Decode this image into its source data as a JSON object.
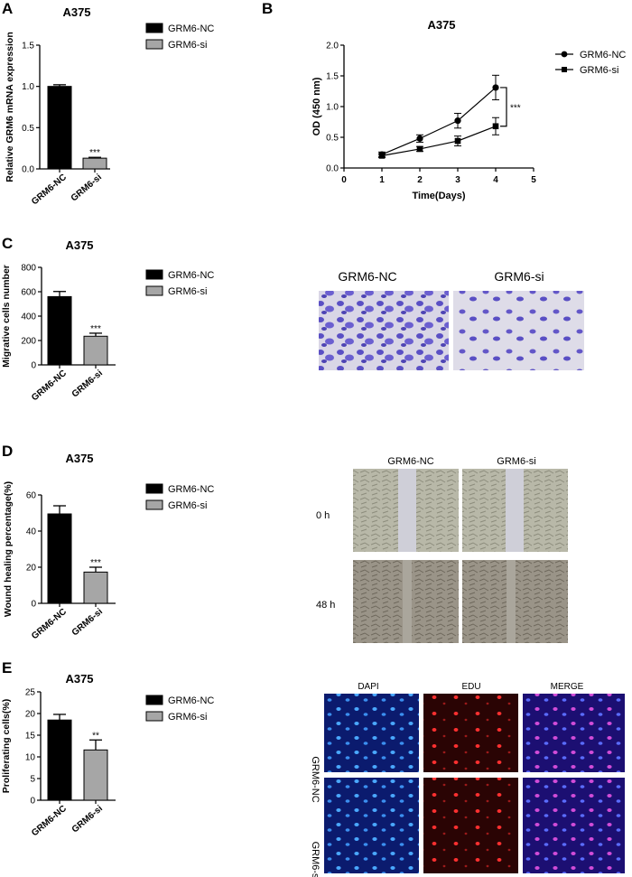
{
  "chart_data": [
    {
      "panel": "A",
      "type": "bar",
      "title": "A375",
      "ylabel": "Relative GRM6 mRNA expression",
      "categories": [
        "GRM6-NC",
        "GRM6-si"
      ],
      "values": [
        1.0,
        0.13
      ],
      "errors": [
        0.02,
        0.01
      ],
      "colors": [
        "#000000",
        "#a6a6a6"
      ],
      "ylim": [
        0,
        1.5
      ],
      "yticks": [
        "0.0",
        "0.5",
        "1.0",
        "1.5"
      ],
      "significance": [
        "",
        "***"
      ],
      "legend": [
        "GRM6-NC",
        "GRM6-si"
      ]
    },
    {
      "panel": "B",
      "type": "line",
      "title": "A375",
      "xlabel": "Time(Days)",
      "ylabel": "OD (450 nm)",
      "x": [
        1,
        2,
        3,
        4
      ],
      "xlim": [
        0,
        5
      ],
      "xticks": [
        "0",
        "1",
        "2",
        "3",
        "4",
        "5"
      ],
      "ylim": [
        0,
        2.0
      ],
      "yticks": [
        "0.0",
        "0.5",
        "1.0",
        "1.5",
        "2.0"
      ],
      "series": [
        {
          "name": "GRM6-NC",
          "marker": "circle",
          "values": [
            0.22,
            0.48,
            0.77,
            1.31
          ],
          "errors": [
            0.04,
            0.06,
            0.12,
            0.2
          ]
        },
        {
          "name": "GRM6-si",
          "marker": "square",
          "values": [
            0.2,
            0.31,
            0.44,
            0.68
          ],
          "errors": [
            0.03,
            0.04,
            0.08,
            0.14
          ]
        }
      ],
      "significance": "***"
    },
    {
      "panel": "C",
      "type": "bar",
      "title": "A375",
      "ylabel": "Migrative cells number",
      "categories": [
        "GRM6-NC",
        "GRM6-si"
      ],
      "values": [
        560,
        235
      ],
      "errors": [
        42,
        25
      ],
      "colors": [
        "#000000",
        "#a6a6a6"
      ],
      "ylim": [
        0,
        800
      ],
      "yticks": [
        "0",
        "200",
        "400",
        "600",
        "800"
      ],
      "significance": [
        "",
        "***"
      ],
      "legend": [
        "GRM6-NC",
        "GRM6-si"
      ]
    },
    {
      "panel": "D",
      "type": "bar",
      "title": "A375",
      "ylabel": "Wound healing percentage(%)",
      "categories": [
        "GRM6-NC",
        "GRM6-si"
      ],
      "values": [
        49.5,
        17.3
      ],
      "errors": [
        4.5,
        2.7
      ],
      "colors": [
        "#000000",
        "#a6a6a6"
      ],
      "ylim": [
        0,
        60
      ],
      "yticks": [
        "0",
        "20",
        "40",
        "60"
      ],
      "significance": [
        "",
        "***"
      ],
      "legend": [
        "GRM6-NC",
        "GRM6-si"
      ]
    },
    {
      "panel": "E",
      "type": "bar",
      "title": "A375",
      "ylabel": "Proliferating cells(%)",
      "categories": [
        "GRM6-NC",
        "GRM6-si"
      ],
      "values": [
        18.5,
        11.6
      ],
      "errors": [
        1.3,
        2.3
      ],
      "colors": [
        "#000000",
        "#a6a6a6"
      ],
      "ylim": [
        0,
        25
      ],
      "yticks": [
        "0",
        "5",
        "10",
        "15",
        "20",
        "25"
      ],
      "significance": [
        "",
        "**"
      ],
      "legend": [
        "GRM6-NC",
        "GRM6-si"
      ]
    }
  ],
  "images": {
    "C": {
      "headers": [
        "GRM6-NC",
        "GRM6-si"
      ]
    },
    "D": {
      "headers": [
        "GRM6-NC",
        "GRM6-si"
      ],
      "rows": [
        "0 h",
        "48 h"
      ]
    },
    "E": {
      "headers": [
        "DAPI",
        "EDU",
        "MERGE"
      ],
      "rows": [
        "GRM6-NC",
        "GRM6-si"
      ]
    }
  },
  "panel_letters": [
    "A",
    "B",
    "C",
    "D",
    "E"
  ],
  "colors": {
    "nc": "#000000",
    "si": "#a6a6a6",
    "stain": "#6a5acd",
    "dapi": "#1e5adc",
    "edu": "#e03030"
  }
}
